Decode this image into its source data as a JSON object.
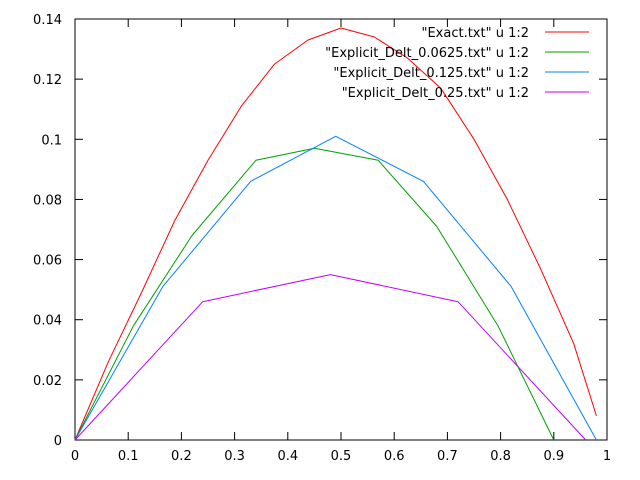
{
  "chart_data": {
    "type": "line",
    "title": "",
    "xlabel": "",
    "ylabel": "",
    "xlim": [
      0,
      1
    ],
    "ylim": [
      0,
      0.14
    ],
    "x_ticks": [
      0,
      0.1,
      0.2,
      0.3,
      0.4,
      0.5,
      0.6,
      0.7,
      0.8,
      0.9,
      1
    ],
    "x_tick_labels": [
      "0",
      "0.1",
      "0.2",
      "0.3",
      "0.4",
      "0.5",
      "0.6",
      "0.7",
      "0.8",
      "0.9",
      "1"
    ],
    "y_ticks": [
      0,
      0.02,
      0.04,
      0.06,
      0.08,
      0.1,
      0.12,
      0.14
    ],
    "y_tick_labels": [
      "0",
      "0.02",
      "0.04",
      "0.06",
      "0.08",
      "0.1",
      "0.12",
      "0.14"
    ],
    "grid": false,
    "legend_position": "top-right",
    "series": [
      {
        "name": "\"Exact.txt\" u 1:2",
        "color": "#ff0000",
        "x": [
          0,
          0.0625,
          0.125,
          0.1875,
          0.25,
          0.3125,
          0.375,
          0.4375,
          0.5,
          0.5625,
          0.625,
          0.6875,
          0.75,
          0.8125,
          0.875,
          0.9375,
          0.98
        ],
        "y": [
          0,
          0.026,
          0.049,
          0.073,
          0.093,
          0.111,
          0.125,
          0.133,
          0.137,
          0.134,
          0.127,
          0.117,
          0.1,
          0.08,
          0.057,
          0.032,
          0.008
        ]
      },
      {
        "name": "\"Explicit_Delt_0.0625.txt\" u 1:2",
        "color": "#00a000",
        "x": [
          0,
          0.11,
          0.22,
          0.34,
          0.45,
          0.57,
          0.68,
          0.795,
          0.9
        ],
        "y": [
          0,
          0.038,
          0.068,
          0.093,
          0.097,
          0.093,
          0.071,
          0.038,
          0
        ]
      },
      {
        "name": "\"Explicit_Delt_0.125.txt\" u 1:2",
        "color": "#0080ff",
        "x": [
          0,
          0.165,
          0.33,
          0.49,
          0.655,
          0.82,
          0.98
        ],
        "y": [
          0,
          0.051,
          0.086,
          0.101,
          0.086,
          0.051,
          0
        ]
      },
      {
        "name": "\"Explicit_Delt_0.25.txt\" u 1:2",
        "color": "#c000ff",
        "x": [
          0,
          0.24,
          0.48,
          0.72,
          0.96
        ],
        "y": [
          0,
          0.046,
          0.055,
          0.046,
          0
        ]
      }
    ]
  }
}
